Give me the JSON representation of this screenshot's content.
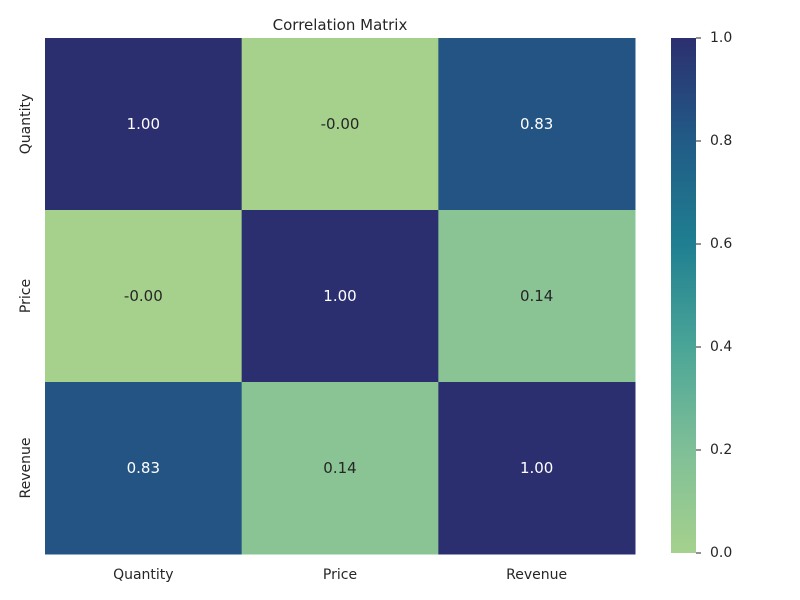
{
  "chart_data": {
    "type": "heatmap",
    "title": "Correlation Matrix",
    "x_labels": [
      "Quantity",
      "Price",
      "Revenue"
    ],
    "y_labels": [
      "Quantity",
      "Price",
      "Revenue"
    ],
    "values": [
      [
        1.0,
        -0.0,
        0.83
      ],
      [
        -0.0,
        1.0,
        0.14
      ],
      [
        0.83,
        0.14,
        1.0
      ]
    ],
    "cell_labels": [
      [
        "1.00",
        "-0.00",
        "0.83"
      ],
      [
        "-0.00",
        "1.00",
        "0.14"
      ],
      [
        "0.83",
        "0.14",
        "1.00"
      ]
    ],
    "colorbar": {
      "range": [
        0.0,
        1.0
      ],
      "ticks": [
        0.0,
        0.2,
        0.4,
        0.6,
        0.8,
        1.0
      ],
      "tick_labels": [
        "0.0",
        "0.2",
        "0.4",
        "0.6",
        "0.8",
        "1.0"
      ],
      "colormap": "crest",
      "color_stops": [
        "#a5d18d",
        "#7fbf97",
        "#4aa597",
        "#1f7f91",
        "#215b86",
        "#2c2f6f"
      ]
    },
    "grid": false,
    "legend": "colorbar-right"
  }
}
